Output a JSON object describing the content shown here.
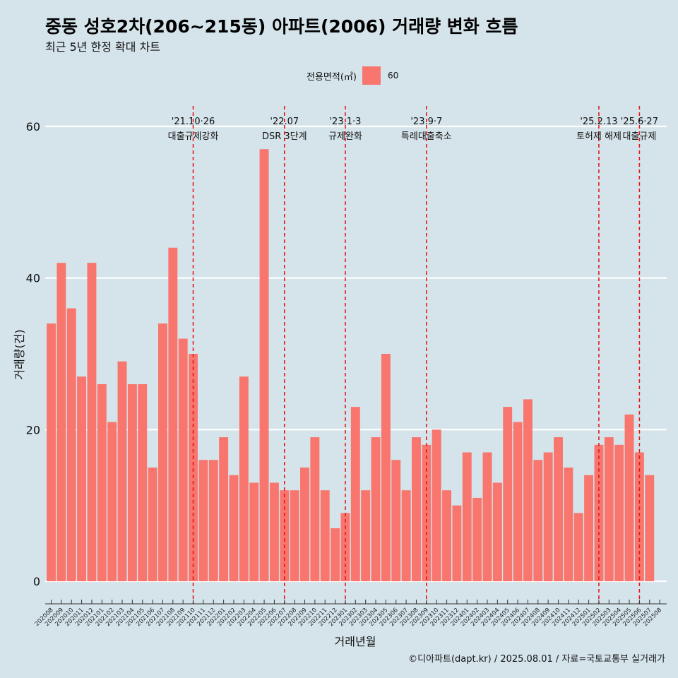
{
  "title": "중동 성호2차(206~215동) 아파트(2006) 거래량 변화 흐름",
  "subtitle": "최근 5년 한정 확대 차트",
  "caption": "©디아파트(dapt.kr) / 2025.08.01 / 자료=국토교통부 실거래가",
  "legend": {
    "title": "전용면적(㎡)",
    "items": [
      {
        "label": "60",
        "color": "#f8766d"
      }
    ]
  },
  "colors": {
    "background": "#d5e4eb",
    "bar": "#f8766d",
    "grid": "#ffffff",
    "event_line": "#e41a1c"
  },
  "chart_data": {
    "type": "bar",
    "xlabel": "거래년월",
    "ylabel": "거래량(건)",
    "ylim": [
      0,
      60
    ],
    "yticks": [
      0,
      20,
      40,
      60
    ],
    "grid": true,
    "legend_position": "top",
    "categories": [
      "202008",
      "202009",
      "202010",
      "202011",
      "202012",
      "202101",
      "202102",
      "202103",
      "202104",
      "202105",
      "202106",
      "202107",
      "202108",
      "202109",
      "202110",
      "202111",
      "202112",
      "202201",
      "202202",
      "202203",
      "202204",
      "202205",
      "202206",
      "202207",
      "202208",
      "202209",
      "202210",
      "202211",
      "202212",
      "202301",
      "202302",
      "202303",
      "202304",
      "202305",
      "202306",
      "202307",
      "202308",
      "202309",
      "202310",
      "202311",
      "202312",
      "202401",
      "202402",
      "202403",
      "202404",
      "202405",
      "202406",
      "202407",
      "202408",
      "202409",
      "202410",
      "202411",
      "202412",
      "202501",
      "202502",
      "202503",
      "202504",
      "202505",
      "202506",
      "202507",
      "202508"
    ],
    "series": [
      {
        "name": "60",
        "values": [
          34,
          42,
          36,
          27,
          42,
          26,
          21,
          29,
          26,
          26,
          15,
          34,
          44,
          32,
          30,
          16,
          16,
          19,
          14,
          27,
          13,
          57,
          13,
          12,
          12,
          15,
          19,
          12,
          7,
          9,
          23,
          12,
          19,
          30,
          16,
          12,
          19,
          18,
          20,
          12,
          10,
          17,
          11,
          17,
          13,
          23,
          21,
          24,
          16,
          17,
          19,
          15,
          9,
          14,
          18,
          19,
          18,
          22,
          17,
          14,
          null
        ]
      }
    ],
    "annotations": [
      {
        "date": "'21.10·26",
        "text": "대출규제강화",
        "category": "202110"
      },
      {
        "date": "'22.07",
        "text": "DSR 3단계",
        "category": "202207"
      },
      {
        "date": "'23.1·3",
        "text": "규제완화",
        "category": "202301"
      },
      {
        "date": "'23.9·7",
        "text": "특례대출축소",
        "category": "202309"
      },
      {
        "date": "'25.2.13",
        "text": "토허제 해제",
        "category": "202502"
      },
      {
        "date": "'25.6·27",
        "text": "대출규제",
        "category": "202506"
      }
    ]
  }
}
